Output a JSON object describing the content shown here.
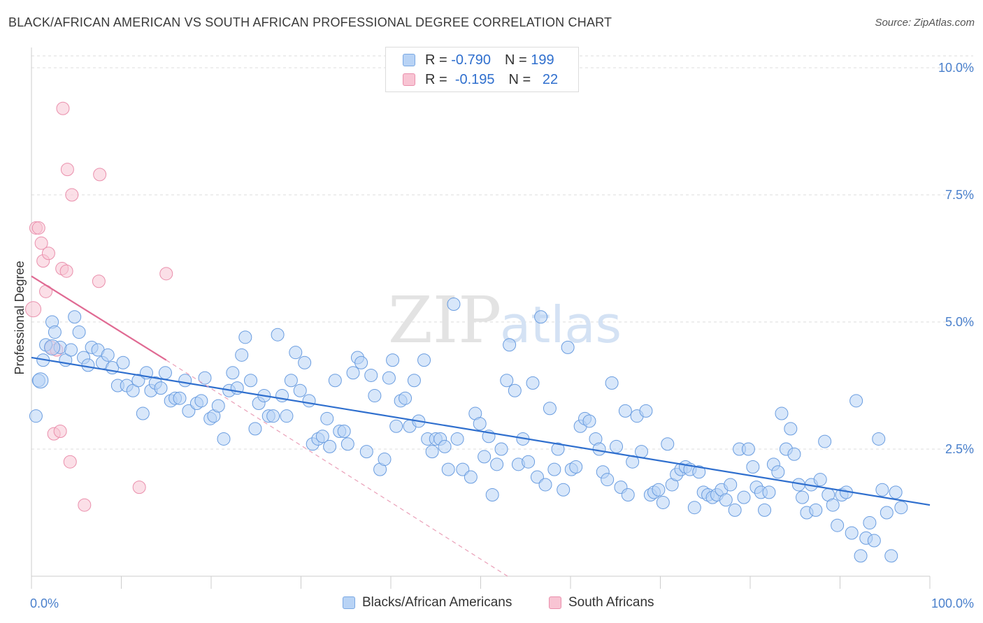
{
  "title": "BLACK/AFRICAN AMERICAN VS SOUTH AFRICAN PROFESSIONAL DEGREE CORRELATION CHART",
  "source": "Source: ZipAtlas.com",
  "watermark": {
    "zip": "ZIP",
    "atlas": "atlas"
  },
  "legend_top": [
    {
      "r_label": "R =",
      "r_value": "-0.790",
      "n_label": "N =",
      "n_value": "199",
      "color": "#7aa8e3"
    },
    {
      "r_label": "R =",
      "r_value": "-0.195",
      "n_label": "N =",
      "n_value": "22",
      "color": "#ea8fac"
    }
  ],
  "chart_data": {
    "type": "scatter",
    "ylabel": "Professional Degree",
    "xlabel": "",
    "xlim": [
      0,
      100
    ],
    "ylim": [
      0,
      10.5
    ],
    "x_tick_labels": [
      "0.0%",
      "100.0%"
    ],
    "y_ticks": [
      {
        "value": 2.5,
        "label": "2.5%"
      },
      {
        "value": 5.0,
        "label": "5.0%"
      },
      {
        "value": 7.5,
        "label": "7.5%"
      },
      {
        "value": 10.0,
        "label": "10.0%"
      }
    ],
    "series": [
      {
        "name": "Blacks/African Americans",
        "color": "#5b93dc",
        "trend": {
          "x": [
            0,
            100
          ],
          "y": [
            4.3,
            1.4
          ]
        },
        "points": [
          [
            0.5,
            3.15
          ],
          [
            0.8,
            3.85
          ],
          [
            1.3,
            4.25
          ],
          [
            1.6,
            4.55
          ],
          [
            2.3,
            5.0
          ],
          [
            2.6,
            4.8
          ],
          [
            3.2,
            4.5
          ],
          [
            3.8,
            4.25
          ],
          [
            4.4,
            4.45
          ],
          [
            4.8,
            5.1
          ],
          [
            5.3,
            4.8
          ],
          [
            5.8,
            4.3
          ],
          [
            6.3,
            4.15
          ],
          [
            6.7,
            4.5
          ],
          [
            7.4,
            4.45
          ],
          [
            7.9,
            4.2
          ],
          [
            8.5,
            4.35
          ],
          [
            9.0,
            4.1
          ],
          [
            9.6,
            3.75
          ],
          [
            10.2,
            4.2
          ],
          [
            10.6,
            3.75
          ],
          [
            11.3,
            3.65
          ],
          [
            11.9,
            3.85
          ],
          [
            12.4,
            3.2
          ],
          [
            12.8,
            4.0
          ],
          [
            13.3,
            3.65
          ],
          [
            13.8,
            3.8
          ],
          [
            14.4,
            3.7
          ],
          [
            14.9,
            4.0
          ],
          [
            15.5,
            3.45
          ],
          [
            16.0,
            3.5
          ],
          [
            16.5,
            3.5
          ],
          [
            17.1,
            3.85
          ],
          [
            17.5,
            3.25
          ],
          [
            18.4,
            3.4
          ],
          [
            18.9,
            3.45
          ],
          [
            19.3,
            3.9
          ],
          [
            19.9,
            3.1
          ],
          [
            20.3,
            3.15
          ],
          [
            20.8,
            3.35
          ],
          [
            21.4,
            2.7
          ],
          [
            22.0,
            3.65
          ],
          [
            22.4,
            4.0
          ],
          [
            22.9,
            3.7
          ],
          [
            23.4,
            4.35
          ],
          [
            23.8,
            4.7
          ],
          [
            24.4,
            3.85
          ],
          [
            24.9,
            2.9
          ],
          [
            25.3,
            3.4
          ],
          [
            25.9,
            3.55
          ],
          [
            26.4,
            3.15
          ],
          [
            26.9,
            3.15
          ],
          [
            27.4,
            4.75
          ],
          [
            27.9,
            3.55
          ],
          [
            28.4,
            3.15
          ],
          [
            28.9,
            3.85
          ],
          [
            29.4,
            4.4
          ],
          [
            29.9,
            3.65
          ],
          [
            30.4,
            4.2
          ],
          [
            30.9,
            3.45
          ],
          [
            31.3,
            2.6
          ],
          [
            31.9,
            2.7
          ],
          [
            32.4,
            2.75
          ],
          [
            32.9,
            3.1
          ],
          [
            33.2,
            2.55
          ],
          [
            33.8,
            3.85
          ],
          [
            34.3,
            2.85
          ],
          [
            34.8,
            2.85
          ],
          [
            35.2,
            2.6
          ],
          [
            35.8,
            4.0
          ],
          [
            36.3,
            4.3
          ],
          [
            36.7,
            4.2
          ],
          [
            37.3,
            2.45
          ],
          [
            37.8,
            3.95
          ],
          [
            38.2,
            3.55
          ],
          [
            38.8,
            2.1
          ],
          [
            39.3,
            2.3
          ],
          [
            39.8,
            3.9
          ],
          [
            40.2,
            4.25
          ],
          [
            40.6,
            2.95
          ],
          [
            41.1,
            3.45
          ],
          [
            41.6,
            3.5
          ],
          [
            42.1,
            2.95
          ],
          [
            42.6,
            3.85
          ],
          [
            43.1,
            3.05
          ],
          [
            43.7,
            4.25
          ],
          [
            44.1,
            2.7
          ],
          [
            44.6,
            2.45
          ],
          [
            45.0,
            2.7
          ],
          [
            45.5,
            2.7
          ],
          [
            46.0,
            2.55
          ],
          [
            46.4,
            2.1
          ],
          [
            47.0,
            5.35
          ],
          [
            47.4,
            2.7
          ],
          [
            48.0,
            2.1
          ],
          [
            48.9,
            1.95
          ],
          [
            49.4,
            3.2
          ],
          [
            49.9,
            3.0
          ],
          [
            50.4,
            2.35
          ],
          [
            50.9,
            2.75
          ],
          [
            51.3,
            1.6
          ],
          [
            51.8,
            2.2
          ],
          [
            52.3,
            2.5
          ],
          [
            52.9,
            3.85
          ],
          [
            53.2,
            4.55
          ],
          [
            53.8,
            3.65
          ],
          [
            54.2,
            2.2
          ],
          [
            54.7,
            2.7
          ],
          [
            55.3,
            2.25
          ],
          [
            55.8,
            3.8
          ],
          [
            56.3,
            1.95
          ],
          [
            56.7,
            5.1
          ],
          [
            57.2,
            1.8
          ],
          [
            57.7,
            3.3
          ],
          [
            58.2,
            2.1
          ],
          [
            58.6,
            2.5
          ],
          [
            59.2,
            1.7
          ],
          [
            59.7,
            4.5
          ],
          [
            60.1,
            2.1
          ],
          [
            60.6,
            2.15
          ],
          [
            61.1,
            2.95
          ],
          [
            61.6,
            3.1
          ],
          [
            62.1,
            3.05
          ],
          [
            62.8,
            2.7
          ],
          [
            63.2,
            2.5
          ],
          [
            63.6,
            2.05
          ],
          [
            64.1,
            1.9
          ],
          [
            64.6,
            3.8
          ],
          [
            65.1,
            2.55
          ],
          [
            65.6,
            1.75
          ],
          [
            66.1,
            3.25
          ],
          [
            66.4,
            1.6
          ],
          [
            66.9,
            2.25
          ],
          [
            67.4,
            3.15
          ],
          [
            67.9,
            2.45
          ],
          [
            68.4,
            3.25
          ],
          [
            68.9,
            1.6
          ],
          [
            69.3,
            1.65
          ],
          [
            69.8,
            1.7
          ],
          [
            70.3,
            1.45
          ],
          [
            70.8,
            2.6
          ],
          [
            71.3,
            1.8
          ],
          [
            71.8,
            2.0
          ],
          [
            72.3,
            2.1
          ],
          [
            72.8,
            2.15
          ],
          [
            73.3,
            2.1
          ],
          [
            73.8,
            1.35
          ],
          [
            74.3,
            2.05
          ],
          [
            74.8,
            1.65
          ],
          [
            75.3,
            1.6
          ],
          [
            75.8,
            1.55
          ],
          [
            76.3,
            1.6
          ],
          [
            76.8,
            1.7
          ],
          [
            77.3,
            1.5
          ],
          [
            77.8,
            1.8
          ],
          [
            78.3,
            1.3
          ],
          [
            78.8,
            2.5
          ],
          [
            79.3,
            1.55
          ],
          [
            79.8,
            2.5
          ],
          [
            80.3,
            2.15
          ],
          [
            80.7,
            1.75
          ],
          [
            81.2,
            1.65
          ],
          [
            81.6,
            1.3
          ],
          [
            82.1,
            1.65
          ],
          [
            82.6,
            2.2
          ],
          [
            83.1,
            2.05
          ],
          [
            83.5,
            3.2
          ],
          [
            84.0,
            2.5
          ],
          [
            84.5,
            2.9
          ],
          [
            84.9,
            2.4
          ],
          [
            85.4,
            1.8
          ],
          [
            85.8,
            1.55
          ],
          [
            86.3,
            1.25
          ],
          [
            86.8,
            1.8
          ],
          [
            87.3,
            1.3
          ],
          [
            87.8,
            1.9
          ],
          [
            88.3,
            2.65
          ],
          [
            88.7,
            1.6
          ],
          [
            89.2,
            1.4
          ],
          [
            89.7,
            1.0
          ],
          [
            90.2,
            1.6
          ],
          [
            90.7,
            1.65
          ],
          [
            91.3,
            0.85
          ],
          [
            91.8,
            3.45
          ],
          [
            92.3,
            0.4
          ],
          [
            92.9,
            0.75
          ],
          [
            93.3,
            1.05
          ],
          [
            93.8,
            0.7
          ],
          [
            94.3,
            2.7
          ],
          [
            94.7,
            1.7
          ],
          [
            95.2,
            1.25
          ],
          [
            95.7,
            0.4
          ],
          [
            96.2,
            1.65
          ],
          [
            96.8,
            1.35
          ]
        ],
        "large_points": [
          [
            1.0,
            3.85
          ],
          [
            2.3,
            4.5
          ]
        ]
      },
      {
        "name": "South Africans",
        "color": "#ea8fac",
        "trend": {
          "x": [
            0,
            15
          ],
          "y": [
            5.9,
            4.25
          ]
        },
        "trend_extension": {
          "x": [
            15,
            53
          ],
          "y": [
            4.25,
            0
          ]
        },
        "points": [
          [
            0.5,
            6.85
          ],
          [
            0.8,
            6.85
          ],
          [
            1.1,
            6.55
          ],
          [
            1.3,
            6.2
          ],
          [
            1.6,
            5.6
          ],
          [
            1.9,
            6.35
          ],
          [
            2.2,
            4.5
          ],
          [
            2.5,
            2.8
          ],
          [
            2.8,
            4.45
          ],
          [
            3.2,
            2.85
          ],
          [
            3.4,
            6.05
          ],
          [
            3.5,
            9.2
          ],
          [
            3.9,
            6.0
          ],
          [
            4.0,
            8.0
          ],
          [
            4.3,
            2.25
          ],
          [
            4.5,
            7.5
          ],
          [
            5.9,
            1.4
          ],
          [
            7.5,
            5.8
          ],
          [
            7.6,
            7.9
          ],
          [
            12.0,
            1.75
          ],
          [
            15.0,
            5.95
          ]
        ],
        "large_points": [
          [
            0.2,
            5.25
          ]
        ]
      }
    ]
  },
  "bottom_legend": [
    {
      "label": "Blacks/African Americans"
    },
    {
      "label": "South Africans"
    }
  ]
}
